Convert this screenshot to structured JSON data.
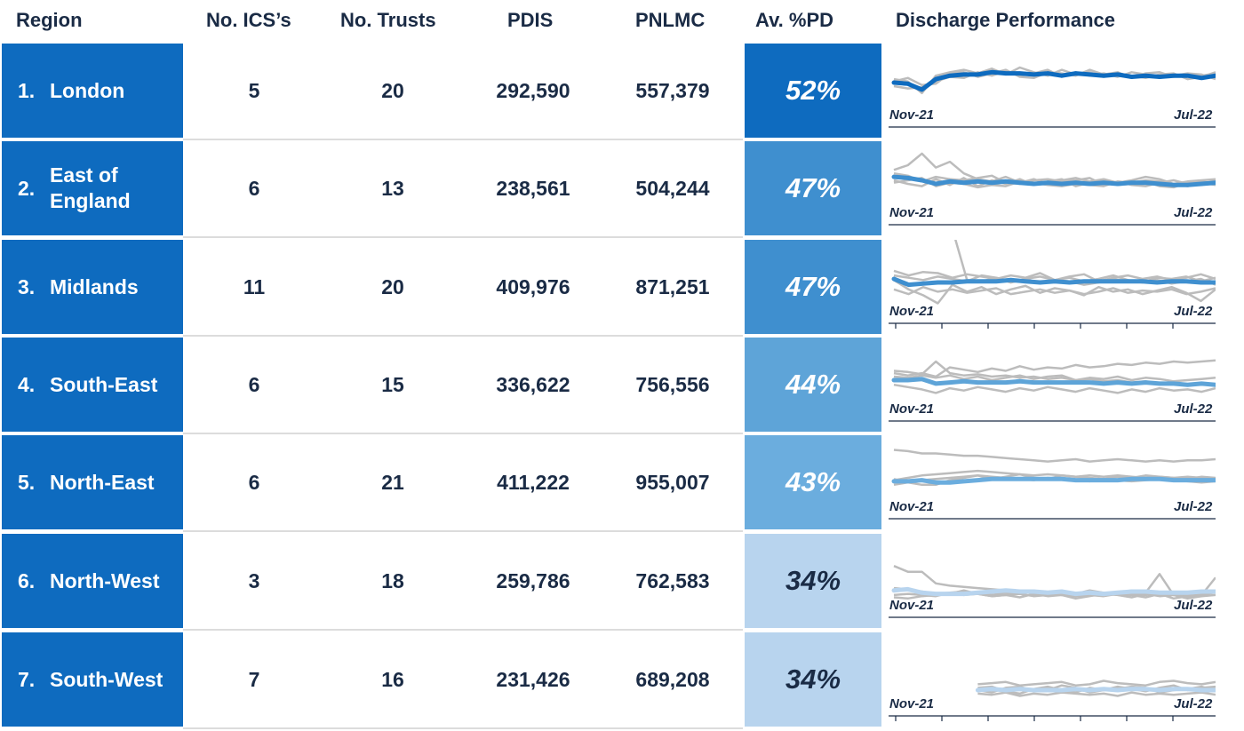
{
  "headers": {
    "region": "Region",
    "ics": "No. ICS’s",
    "trusts": "No. Trusts",
    "pdis": "PDIS",
    "pnlmc": "PNLMC",
    "pd": "Av. %PD",
    "performance": "Discharge Performance"
  },
  "colors": {
    "region_bg": "#0e6bbf",
    "pd_52": "#0e6bbf",
    "pd_47": "#3f8fcf",
    "pd_44": "#5ea4d8",
    "pd_43": "#6badde",
    "pd_34": "#b8d4ee",
    "gray_line": "#bcbcbc"
  },
  "rows": [
    {
      "num": "1.",
      "name": "London",
      "ics": "5",
      "trusts": "20",
      "pdis": "292,590",
      "pnlmc": "557,379",
      "pd": "52%"
    },
    {
      "num": "2.",
      "name": "East of England",
      "ics": "6",
      "trusts": "13",
      "pdis": "238,561",
      "pnlmc": "504,244",
      "pd": "47%"
    },
    {
      "num": "3.",
      "name": "Midlands",
      "ics": "11",
      "trusts": "20",
      "pdis": "409,976",
      "pnlmc": "871,251",
      "pd": "47%"
    },
    {
      "num": "4.",
      "name": "South-East",
      "ics": "6",
      "trusts": "15",
      "pdis": "336,622",
      "pnlmc": "756,556",
      "pd": "44%"
    },
    {
      "num": "5.",
      "name": "North-East",
      "ics": "6",
      "trusts": "21",
      "pdis": "411,222",
      "pnlmc": "955,007",
      "pd": "43%"
    },
    {
      "num": "6.",
      "name": "North-West",
      "ics": "3",
      "trusts": "18",
      "pdis": "259,786",
      "pnlmc": "762,583",
      "pd": "34%"
    },
    {
      "num": "7.",
      "name": "South-West",
      "ics": "7",
      "trusts": "16",
      "pdis": "231,426",
      "pnlmc": "689,208",
      "pd": "34%"
    }
  ],
  "chart_data": {
    "type": "line",
    "title": "Discharge Performance",
    "x_start_label": "Nov-21",
    "x_end_label": "Jul-22",
    "ylim": [
      0,
      100
    ],
    "regions": [
      {
        "name": "London",
        "color": "#0e6bbf",
        "ticks": false,
        "main": [
          49,
          48,
          43,
          52,
          55,
          56,
          56,
          58,
          57,
          57,
          56,
          57,
          55,
          57,
          56,
          55,
          56,
          54,
          55,
          54,
          55,
          55,
          53,
          55
        ],
        "others": [
          [
            52,
            50,
            40,
            55,
            58,
            60,
            57,
            61,
            56,
            62,
            58,
            55,
            60,
            56,
            58,
            54,
            57,
            55,
            53,
            56,
            57,
            52,
            54,
            58
          ],
          [
            46,
            44,
            45,
            50,
            54,
            53,
            58,
            55,
            59,
            55,
            57,
            60,
            54,
            58,
            55,
            57,
            54,
            58,
            56,
            53,
            55,
            57,
            56,
            52
          ],
          [
            50,
            53,
            47,
            48,
            57,
            58,
            54,
            57,
            60,
            54,
            53,
            58,
            57,
            55,
            60,
            56,
            58,
            53,
            57,
            58,
            54,
            56,
            55,
            57
          ]
        ]
      },
      {
        "name": "East of England",
        "color": "#3f8fcf",
        "ticks": false,
        "main": [
          52,
          51,
          49,
          46,
          48,
          47,
          48,
          47,
          48,
          47,
          46,
          47,
          46,
          47,
          46,
          47,
          46,
          47,
          47,
          46,
          45,
          45,
          46,
          47
        ],
        "others": [
          [
            58,
            62,
            72,
            60,
            65,
            55,
            50,
            48,
            52,
            47,
            50,
            46,
            49,
            51,
            48,
            50,
            47,
            49,
            52,
            50,
            46,
            48,
            49,
            50
          ],
          [
            49,
            46,
            44,
            50,
            45,
            51,
            44,
            49,
            46,
            50,
            45,
            48,
            50,
            44,
            47,
            49,
            45,
            46,
            48,
            44,
            43,
            47,
            45,
            49
          ],
          [
            55,
            53,
            48,
            52,
            50,
            49,
            51,
            53,
            47,
            46,
            49,
            50,
            48,
            49,
            51,
            45,
            48,
            47,
            49,
            48,
            46,
            44,
            47,
            45
          ],
          [
            47,
            49,
            51,
            44,
            47,
            46,
            43,
            45,
            44,
            48,
            47,
            45,
            44,
            46,
            45,
            44,
            48,
            45,
            44,
            47,
            49,
            46,
            48,
            46
          ]
        ]
      },
      {
        "name": "Midlands",
        "color": "#3f8fcf",
        "ticks": true,
        "main": [
          49,
          44,
          45,
          46,
          46,
          47,
          47,
          47,
          48,
          47,
          46,
          47,
          46,
          47,
          47,
          47,
          47,
          47,
          46,
          47,
          47,
          46,
          46
        ],
        "others": [
          [
            92,
            92,
            92,
            92,
            92,
            48,
            47,
            50,
            46,
            49,
            45,
            48,
            47,
            44,
            46,
            49,
            47,
            46,
            48,
            45,
            47,
            49,
            44
          ],
          [
            56,
            52,
            55,
            54,
            50,
            53,
            51,
            49,
            52,
            50,
            54,
            48,
            51,
            53,
            47,
            50,
            52,
            49,
            51,
            48,
            50,
            53,
            49
          ],
          [
            40,
            36,
            42,
            38,
            40,
            37,
            39,
            41,
            36,
            38,
            40,
            37,
            39,
            36,
            38,
            41,
            37,
            39,
            38,
            40,
            36,
            38,
            41
          ],
          [
            48,
            40,
            35,
            28,
            44,
            38,
            42,
            36,
            40,
            43,
            37,
            41,
            39,
            35,
            42,
            38,
            40,
            36,
            39,
            42,
            37,
            30,
            40
          ],
          [
            52,
            50,
            48,
            51,
            49,
            47,
            52,
            50,
            46,
            49,
            51,
            48,
            50,
            47,
            49,
            52,
            48,
            46,
            50,
            49,
            51,
            47,
            50
          ]
        ]
      },
      {
        "name": "South-East",
        "color": "#5ea4d8",
        "ticks": false,
        "main": [
          46,
          46,
          47,
          43,
          44,
          45,
          44,
          44,
          44,
          45,
          44,
          44,
          44,
          44,
          44,
          43,
          44,
          43,
          44,
          43,
          43,
          42,
          43,
          42
        ],
        "others": [
          [
            52,
            50,
            52,
            49,
            57,
            55,
            53,
            56,
            54,
            58,
            55,
            57,
            56,
            59,
            57,
            58,
            60,
            59,
            61,
            60,
            62,
            61,
            62,
            63
          ],
          [
            54,
            53,
            51,
            62,
            52,
            50,
            51,
            49,
            50,
            48,
            49,
            47,
            48,
            46,
            47,
            45,
            46,
            44,
            45,
            43,
            44,
            42,
            43,
            41
          ],
          [
            49,
            48,
            50,
            48,
            50,
            47,
            49,
            46,
            48,
            50,
            47,
            49,
            50,
            46,
            48,
            47,
            49,
            46,
            48,
            47,
            45,
            46,
            47,
            48
          ],
          [
            42,
            40,
            38,
            35,
            39,
            37,
            40,
            38,
            36,
            39,
            37,
            40,
            38,
            36,
            39,
            37,
            35,
            38,
            36,
            39,
            37,
            38,
            36,
            39
          ]
        ]
      },
      {
        "name": "North-East",
        "color": "#6badde",
        "ticks": false,
        "main": [
          43,
          43,
          44,
          42,
          42,
          43,
          44,
          45,
          45,
          45,
          45,
          45,
          45,
          44,
          44,
          44,
          44,
          45,
          45,
          45,
          44,
          44,
          44,
          44
        ],
        "others": [
          [
            70,
            69,
            67,
            67,
            66,
            65,
            65,
            64,
            63,
            62,
            61,
            60,
            61,
            62,
            60,
            61,
            62,
            61,
            60,
            61,
            60,
            61,
            61,
            62
          ],
          [
            45,
            42,
            40,
            40,
            44,
            46,
            48,
            45,
            47,
            49,
            46,
            45,
            48,
            47,
            46,
            45,
            47,
            46,
            48,
            47,
            46,
            45,
            47,
            46
          ],
          [
            40,
            42,
            44,
            45,
            46,
            47,
            48,
            47,
            46,
            45,
            44,
            46,
            45,
            44,
            43,
            45,
            44,
            43,
            44,
            45,
            44,
            43,
            42,
            43
          ],
          [
            44,
            46,
            48,
            49,
            50,
            51,
            52,
            51,
            50,
            49,
            48,
            49,
            48,
            47,
            48,
            47,
            48,
            47,
            46,
            47,
            46,
            47,
            46,
            45
          ]
        ]
      },
      {
        "name": "North-West",
        "color": "#b8d4ee",
        "ticks": false,
        "main": [
          34,
          35,
          32,
          31,
          31,
          31,
          32,
          33,
          34,
          33,
          33,
          32,
          33,
          31,
          32,
          31,
          32,
          33,
          33,
          32,
          32,
          32,
          33,
          33
        ],
        "others": [
          [
            55,
            50,
            50,
            40,
            38,
            37,
            36,
            35,
            34,
            33,
            32,
            31,
            30,
            29,
            30,
            31,
            32,
            31,
            30,
            32,
            31,
            30,
            31,
            32
          ],
          [
            28,
            27,
            29,
            30,
            31,
            34,
            31,
            29,
            30,
            28,
            31,
            29,
            30,
            27,
            29,
            31,
            30,
            28,
            31,
            29,
            30,
            28,
            29,
            30
          ],
          [
            36,
            35,
            33,
            31,
            32,
            33,
            31,
            30,
            32,
            31,
            33,
            32,
            30,
            31,
            34,
            32,
            31,
            33,
            32,
            48,
            30,
            27,
            29,
            33
          ],
          [
            30,
            31,
            30,
            29,
            32,
            30,
            31,
            29,
            30,
            31,
            29,
            30,
            31,
            32,
            30,
            29,
            31,
            30,
            28,
            31,
            27,
            29,
            30,
            45
          ]
        ]
      },
      {
        "name": "South-West",
        "color": "#b8d4ee",
        "ticks": true,
        "main": [
          null,
          null,
          null,
          null,
          null,
          null,
          33,
          34,
          33,
          34,
          33,
          33,
          33,
          34,
          33,
          34,
          33,
          34,
          34,
          33,
          34,
          34,
          33,
          33
        ],
        "others": [
          [
            null,
            null,
            null,
            null,
            null,
            null,
            38,
            39,
            40,
            37,
            38,
            39,
            40,
            37,
            38,
            41,
            39,
            38,
            37,
            40,
            41,
            39,
            38,
            40
          ],
          [
            null,
            null,
            null,
            null,
            null,
            null,
            30,
            29,
            31,
            28,
            30,
            29,
            31,
            30,
            29,
            30,
            28,
            31,
            29,
            30,
            29,
            30,
            31,
            29
          ],
          [
            null,
            null,
            null,
            null,
            null,
            null,
            35,
            36,
            32,
            30,
            34,
            36,
            33,
            31,
            35,
            33,
            36,
            34,
            32,
            35,
            37,
            33,
            35,
            36
          ],
          [
            null,
            null,
            null,
            null,
            null,
            null,
            33,
            31,
            35,
            36,
            32,
            33,
            37,
            35,
            31,
            33,
            34,
            36,
            35,
            31,
            33,
            34,
            36,
            32
          ]
        ]
      }
    ]
  }
}
